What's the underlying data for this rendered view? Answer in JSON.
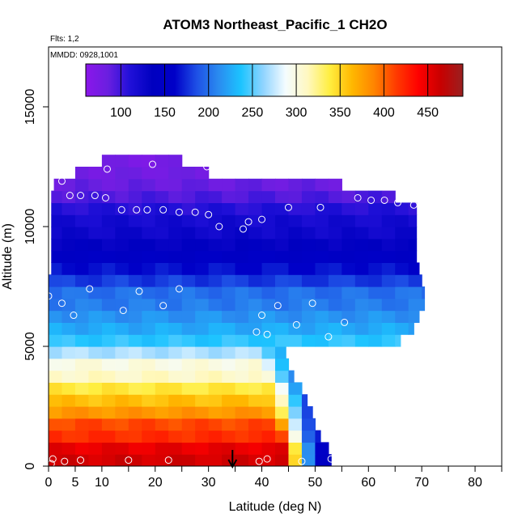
{
  "chart_data": {
    "type": "heatmap",
    "title": "ATOM3 Northeast_Pacific_1 CH2O",
    "subtitle_flights": "Flts: 1,2",
    "subtitle_dates": "MMDD: 0928,1001",
    "xlabel": "Latitude (deg N)",
    "ylabel": "Altitude (m)",
    "xlim": [
      0,
      85
    ],
    "ylim": [
      0,
      17500
    ],
    "xticks": [
      0,
      5,
      10,
      20,
      30,
      40,
      50,
      60,
      70,
      80
    ],
    "xtick_labels": [
      "0",
      "5",
      "10",
      "20",
      "30",
      "40",
      "50",
      "60",
      "70",
      "80"
    ],
    "yticks": [
      0,
      5000,
      10000,
      15000
    ],
    "ytick_labels": [
      "0",
      "5000",
      "10000",
      "15000"
    ],
    "colorbar": {
      "range": [
        60,
        490
      ],
      "ticks": [
        100,
        150,
        200,
        250,
        300,
        350,
        400,
        450
      ],
      "tick_labels": [
        "100",
        "150",
        "200",
        "250",
        "300",
        "350",
        "400",
        "450"
      ],
      "colors": [
        "#8b16ea",
        "#6a1fe0",
        "#2010d8",
        "#0000c0",
        "#0000c8",
        "#1e50e6",
        "#2a8cf0",
        "#1cc4ff",
        "#90d4ff",
        "#f4fcff",
        "#fff8c0",
        "#ffee40",
        "#ffb800",
        "#ff8400",
        "#ff3a00",
        "#ff0000",
        "#c80000",
        "#9a2020"
      ]
    },
    "lat_bins": [
      0,
      2.5,
      5,
      7.5,
      10,
      12.5,
      15,
      17.5,
      20,
      22.5,
      25,
      27.5,
      30,
      32.5,
      35,
      37.5,
      40,
      42.5,
      45,
      47.5,
      50,
      52.5,
      55,
      57.5,
      60,
      62.5,
      65,
      67.5,
      70
    ],
    "alt_bins": [
      0,
      500,
      1000,
      1500,
      2000,
      2500,
      3000,
      3500,
      4000,
      4500,
      5000,
      5500,
      6000,
      6500,
      7000,
      7500,
      8000,
      8500,
      9000,
      9500,
      10000,
      10500,
      11000,
      11500,
      12000,
      12500,
      13000
    ],
    "profile_values": [
      460,
      450,
      420,
      410,
      380,
      360,
      340,
      310,
      300,
      270,
      240,
      225,
      215,
      205,
      200,
      180,
      165,
      150,
      135,
      125,
      120,
      110,
      95,
      85,
      80,
      75
    ],
    "lat_extent_min": [
      0,
      0,
      0,
      0,
      0,
      0,
      0,
      0,
      0,
      0,
      0,
      0,
      0,
      0,
      0,
      0,
      0.5,
      0.5,
      0.5,
      0.5,
      0.5,
      0.5,
      0.5,
      1,
      5,
      10,
      10
    ],
    "lat_extent_max": [
      53,
      52.5,
      51,
      50,
      49.5,
      48.5,
      47.5,
      46,
      45,
      44.5,
      66,
      68.5,
      69.5,
      70.5,
      70.5,
      70,
      69.5,
      69,
      69,
      69,
      69,
      69,
      65,
      55,
      30,
      25,
      25
    ],
    "transition_lat": [
      44,
      44,
      43.5,
      43,
      42.5,
      42,
      41.5,
      40.5,
      40,
      39.5
    ],
    "marker_latitude": 34.5,
    "observations": [
      {
        "lat": 0.5,
        "alt": 100
      },
      {
        "lat": 0.8,
        "alt": 300
      },
      {
        "lat": 3,
        "alt": 200
      },
      {
        "lat": 6,
        "alt": 250
      },
      {
        "lat": 15,
        "alt": 250
      },
      {
        "lat": 22.5,
        "alt": 250
      },
      {
        "lat": 39.5,
        "alt": 200
      },
      {
        "lat": 41,
        "alt": 300
      },
      {
        "lat": 47.5,
        "alt": 200
      },
      {
        "lat": 53,
        "alt": 300
      },
      {
        "lat": 0,
        "alt": 7100
      },
      {
        "lat": 2.5,
        "alt": 6800
      },
      {
        "lat": 4.7,
        "alt": 6300
      },
      {
        "lat": 7.7,
        "alt": 7400
      },
      {
        "lat": 14,
        "alt": 6500
      },
      {
        "lat": 17,
        "alt": 7300
      },
      {
        "lat": 21.5,
        "alt": 6700
      },
      {
        "lat": 24.5,
        "alt": 7400
      },
      {
        "lat": 39,
        "alt": 5600
      },
      {
        "lat": 40,
        "alt": 6300
      },
      {
        "lat": 41,
        "alt": 5500
      },
      {
        "lat": 43,
        "alt": 6700
      },
      {
        "lat": 46.5,
        "alt": 5900
      },
      {
        "lat": 49.5,
        "alt": 6800
      },
      {
        "lat": 52.5,
        "alt": 5400
      },
      {
        "lat": 55.5,
        "alt": 6000
      },
      {
        "lat": 71,
        "alt": 6100
      },
      {
        "lat": 2.5,
        "alt": 11900
      },
      {
        "lat": 4,
        "alt": 11300
      },
      {
        "lat": 6,
        "alt": 11300
      },
      {
        "lat": 8.7,
        "alt": 11300
      },
      {
        "lat": 10.7,
        "alt": 11200
      },
      {
        "lat": 11,
        "alt": 12400
      },
      {
        "lat": 13.7,
        "alt": 10700
      },
      {
        "lat": 16.5,
        "alt": 10700
      },
      {
        "lat": 18.5,
        "alt": 10700
      },
      {
        "lat": 19.5,
        "alt": 12600
      },
      {
        "lat": 21.5,
        "alt": 10700
      },
      {
        "lat": 24.5,
        "alt": 10600
      },
      {
        "lat": 26.5,
        "alt": 12800
      },
      {
        "lat": 27.5,
        "alt": 10600
      },
      {
        "lat": 29.7,
        "alt": 12500
      },
      {
        "lat": 30,
        "alt": 10500
      },
      {
        "lat": 32,
        "alt": 10000
      },
      {
        "lat": 36.5,
        "alt": 9900
      },
      {
        "lat": 37.5,
        "alt": 10200
      },
      {
        "lat": 40,
        "alt": 10300
      },
      {
        "lat": 45,
        "alt": 10800
      },
      {
        "lat": 51,
        "alt": 10800
      },
      {
        "lat": 58,
        "alt": 11200
      },
      {
        "lat": 60.5,
        "alt": 11100
      },
      {
        "lat": 63,
        "alt": 11100
      },
      {
        "lat": 65.5,
        "alt": 11000
      },
      {
        "lat": 68.5,
        "alt": 10900
      }
    ]
  }
}
